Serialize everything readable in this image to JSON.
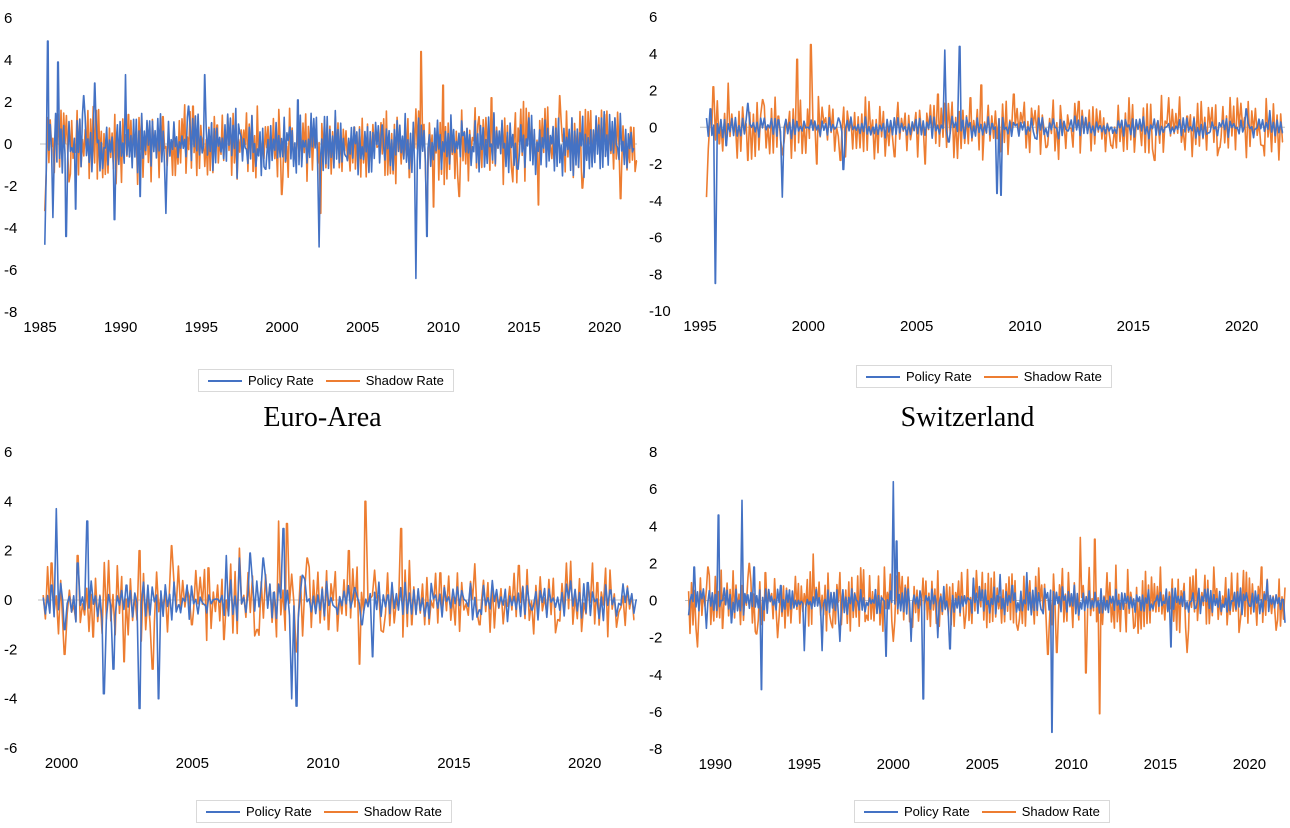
{
  "chart_data": [
    {
      "type": "line",
      "title": "",
      "legend_position": "bottom",
      "x_range": [
        1985,
        2022
      ],
      "ylim": [
        -8,
        6
      ],
      "y_ticks": [
        "6",
        "4",
        "2",
        "0",
        "-2",
        "-4",
        "-6",
        "-8"
      ],
      "x_ticks": [
        "1985",
        "1990",
        "1995",
        "2000",
        "2005",
        "2010",
        "2015",
        "2020"
      ],
      "series": [
        {
          "name": "Policy Rate",
          "color": "#4472C4",
          "seed": 11,
          "amp": 0.9,
          "x": [
            1985.3,
            1985.5,
            1985.8,
            1986.1,
            1986.6,
            1987.2,
            1987.7,
            1988.4,
            1989.6,
            1990.3,
            1991.2,
            1991.8,
            1992.8,
            1994.2,
            1995.2,
            1997.4,
            1999.0,
            2000.5,
            2001.0,
            2002.3,
            2004.0,
            2006.2,
            2007.8,
            2008.3,
            2009.0,
            2011.2,
            2014.6,
            2017.8,
            2020.3,
            2021.8
          ],
          "y": [
            -4.8,
            4.9,
            -3.5,
            3.9,
            -4.4,
            -3.1,
            2.3,
            2.9,
            -3.6,
            3.3,
            -2.5,
            1.1,
            -3.3,
            1.8,
            3.3,
            0.5,
            -1.2,
            0.8,
            2.1,
            -4.9,
            -0.6,
            0.9,
            0.2,
            -6.4,
            -4.4,
            0.4,
            -1.2,
            0.7,
            1.4,
            -0.2
          ]
        },
        {
          "name": "Shadow Rate",
          "color": "#ED7D31",
          "seed": 23,
          "amp": 1.1,
          "x": [
            1985.3,
            1986.0,
            1986.8,
            1988.5,
            1990.5,
            1992.6,
            1994.5,
            1996.0,
            1998.2,
            2000.0,
            2001.3,
            2002.4,
            2004.5,
            2006.3,
            2007.9,
            2008.6,
            2009.0,
            2009.4,
            2010.0,
            2011.0,
            2012.2,
            2013.0,
            2014.3,
            2015.9,
            2017.2,
            2018.6,
            2020.0,
            2021.0,
            2021.6,
            2022.0
          ],
          "y": [
            -3.2,
            1.2,
            -1.8,
            1.6,
            1.4,
            1.3,
            1.8,
            0.9,
            -1.3,
            -2.4,
            1.0,
            -3.3,
            0.8,
            1.2,
            -1.6,
            4.4,
            -3.6,
            -3.0,
            2.8,
            -2.5,
            1.3,
            2.2,
            -1.8,
            -2.9,
            2.3,
            -2.1,
            1.4,
            -2.6,
            0.8,
            -0.8
          ]
        }
      ]
    },
    {
      "type": "line",
      "title": "",
      "legend_position": "bottom",
      "x_range": [
        1995,
        2022
      ],
      "ylim": [
        -10,
        6
      ],
      "y_ticks": [
        "6",
        "4",
        "2",
        "0",
        "-2",
        "-4",
        "-6",
        "-8",
        "-10"
      ],
      "x_ticks": [
        "1995",
        "2000",
        "2005",
        "2010",
        "2015",
        "2020"
      ],
      "series": [
        {
          "name": "Policy Rate",
          "color": "#4472C4",
          "seed": 5,
          "amp": 0.35,
          "x": [
            1995.3,
            1995.5,
            1995.7,
            1996.2,
            1997.2,
            1998.6,
            1998.8,
            2000.0,
            2001.4,
            2001.6,
            2003.0,
            2006.3,
            2006.5,
            2007.0,
            2007.2,
            2007.8,
            2008.5,
            2008.7,
            2008.9,
            2009.3,
            2010.5,
            2012.0,
            2014.0,
            2016.5,
            2018.5,
            2020.2,
            2020.6,
            2021.3,
            2021.9
          ],
          "y": [
            0.5,
            1.0,
            -8.5,
            -1.0,
            1.3,
            0.4,
            -3.8,
            0.0,
            0.5,
            -2.3,
            0.0,
            4.2,
            -0.8,
            4.4,
            -0.6,
            0.5,
            0.2,
            -3.6,
            -3.7,
            0.3,
            -0.6,
            -0.2,
            0.0,
            0.0,
            -0.3,
            1.0,
            -0.1,
            0.9,
            -0.3
          ]
        },
        {
          "name": "Shadow Rate",
          "color": "#ED7D31",
          "seed": 31,
          "amp": 1.0,
          "x": [
            1995.3,
            1995.6,
            1995.9,
            1996.3,
            1997.2,
            1997.9,
            1998.6,
            1998.8,
            1999.5,
            1999.8,
            2000.1,
            2000.4,
            2001.5,
            2002.8,
            2004.0,
            2005.4,
            2006.0,
            2007.5,
            2008.0,
            2009.5,
            2011.0,
            2012.5,
            2014.0,
            2016.0,
            2017.5,
            2019.0,
            2020.3,
            2021.0,
            2021.9
          ],
          "y": [
            -3.8,
            2.2,
            -0.9,
            2.4,
            -1.8,
            1.5,
            0.6,
            -1.5,
            3.7,
            0.3,
            4.5,
            -2.0,
            -1.8,
            1.4,
            -1.6,
            -2.0,
            1.8,
            1.6,
            2.3,
            1.8,
            -1.1,
            1.4,
            -1.0,
            -1.8,
            0.6,
            -1.1,
            1.4,
            -1.0,
            -0.8
          ]
        }
      ]
    },
    {
      "type": "line",
      "title": "Euro-Area",
      "legend_position": "bottom",
      "x_range": [
        1999.1,
        2022
      ],
      "ylim": [
        -6,
        6
      ],
      "y_ticks": [
        "6",
        "4",
        "2",
        "0",
        "-2",
        "-4",
        "-6"
      ],
      "x_ticks": [
        "2000",
        "2005",
        "2010",
        "2015",
        "2020"
      ],
      "series": [
        {
          "name": "Policy Rate",
          "color": "#4472C4",
          "seed": 7,
          "amp": 0.5,
          "x": [
            1999.3,
            1999.6,
            1999.8,
            2000.1,
            2000.6,
            2001.0,
            2001.6,
            2002.0,
            2002.5,
            2003.0,
            2003.3,
            2003.7,
            2004.5,
            2005.5,
            2006.3,
            2006.8,
            2007.2,
            2007.7,
            2008.1,
            2008.5,
            2008.8,
            2009.0,
            2009.2,
            2009.8,
            2010.5,
            2011.2,
            2011.5,
            2011.9,
            2012.5,
            2014.0,
            2016.0,
            2018.0,
            2020.1,
            2021.0,
            2022.0
          ],
          "y": [
            0.1,
            0.6,
            3.7,
            -1.2,
            1.5,
            3.2,
            -3.8,
            -2.8,
            0.6,
            -4.4,
            0.6,
            -4.0,
            -0.2,
            -0.2,
            1.8,
            1.7,
            1.9,
            1.7,
            0.3,
            2.9,
            -4.0,
            -4.3,
            1.0,
            0.2,
            -0.3,
            0.5,
            -1.0,
            -2.3,
            0.2,
            -0.1,
            -0.4,
            -0.4,
            0.7,
            0.4,
            0.0
          ]
        },
        {
          "name": "Shadow Rate",
          "color": "#ED7D31",
          "seed": 19,
          "amp": 0.9,
          "x": [
            1999.3,
            1999.6,
            2000.1,
            2000.6,
            2001.2,
            2001.8,
            2002.4,
            2003.0,
            2003.5,
            2004.2,
            2005.0,
            2005.6,
            2006.2,
            2006.8,
            2007.5,
            2008.3,
            2008.6,
            2009.0,
            2009.4,
            2010.2,
            2011.0,
            2011.4,
            2011.6,
            2012.3,
            2013.0,
            2013.4,
            2014.5,
            2016.0,
            2017.5,
            2019.0,
            2020.5,
            2021.3,
            2021.9
          ],
          "y": [
            0.2,
            1.5,
            -2.2,
            1.8,
            -1.5,
            1.6,
            -2.5,
            2.0,
            -2.8,
            2.2,
            -1.0,
            1.3,
            -1.6,
            2.1,
            -1.2,
            3.2,
            3.1,
            -2.1,
            1.7,
            -1.2,
            2.0,
            -2.6,
            4.0,
            -1.3,
            2.9,
            -1.0,
            1.1,
            -1.0,
            1.4,
            -0.8,
            0.7,
            -0.5,
            -0.8
          ]
        }
      ]
    },
    {
      "type": "line",
      "title": "Switzerland",
      "legend_position": "bottom",
      "x_range": [
        1988.3,
        2022
      ],
      "ylim": [
        -8,
        8
      ],
      "y_ticks": [
        "8",
        "6",
        "4",
        "2",
        "0",
        "-2",
        "-4",
        "-6",
        "-8"
      ],
      "x_ticks": [
        "1990",
        "1995",
        "2000",
        "2005",
        "2010",
        "2015",
        "2020"
      ],
      "series": [
        {
          "name": "Policy Rate",
          "color": "#4472C4",
          "seed": 3,
          "amp": 0.45,
          "x": [
            1988.5,
            1988.8,
            1989.5,
            1990.2,
            1990.9,
            1991.5,
            1991.8,
            1992.2,
            1992.6,
            1993.0,
            1993.7,
            1995.0,
            1996.0,
            1997.0,
            1998.5,
            1999.6,
            2000.0,
            2000.2,
            2000.5,
            2001.0,
            2001.7,
            2002.5,
            2003.2,
            2004.5,
            2006.0,
            2006.7,
            2007.5,
            2008.3,
            2008.9,
            2009.3,
            2010.5,
            2012.0,
            2014.5,
            2015.6,
            2017.0,
            2018.5,
            2020.0,
            2021.0,
            2022.0
          ],
          "y": [
            -0.8,
            1.8,
            -1.5,
            4.6,
            -1.2,
            5.4,
            0.3,
            1.8,
            -4.8,
            0.6,
            0.8,
            -2.7,
            -2.7,
            -2.2,
            -0.1,
            -3.0,
            6.4,
            3.2,
            0.4,
            -2.2,
            -5.3,
            -2.0,
            -2.6,
            1.2,
            1.4,
            0.8,
            1.5,
            -0.5,
            -7.1,
            0.2,
            -0.1,
            0.0,
            -0.2,
            -2.5,
            -0.4,
            -0.2,
            -0.3,
            1.1,
            -1.2
          ]
        },
        {
          "name": "Shadow Rate",
          "color": "#ED7D31",
          "seed": 41,
          "amp": 1.0,
          "x": [
            1988.5,
            1989.0,
            1989.6,
            1990.4,
            1991.0,
            1991.9,
            1992.3,
            1992.8,
            1993.5,
            1994.5,
            1995.5,
            1996.5,
            1997.5,
            1998.5,
            1999.5,
            2000.0,
            2000.3,
            2001.0,
            2002.5,
            2004.0,
            2005.5,
            2007.0,
            2008.0,
            2008.7,
            2009.2,
            2010.5,
            2010.8,
            2011.3,
            2011.6,
            2012.5,
            2013.5,
            2015.0,
            2016.5,
            2018.0,
            2019.5,
            2020.7,
            2021.5,
            2022.0
          ],
          "y": [
            0.5,
            -2.5,
            1.8,
            -1.5,
            1.6,
            2.0,
            -1.8,
            1.5,
            -2.0,
            1.3,
            2.5,
            -1.2,
            1.0,
            -0.8,
            1.8,
            -2.2,
            1.5,
            -1.0,
            1.6,
            -1.5,
            1.2,
            -1.6,
            1.3,
            -2.9,
            -2.8,
            3.4,
            -3.9,
            3.3,
            -6.1,
            1.9,
            -1.5,
            1.8,
            -2.8,
            1.8,
            -1.0,
            1.8,
            -1.6,
            0.7
          ]
        }
      ]
    }
  ]
}
